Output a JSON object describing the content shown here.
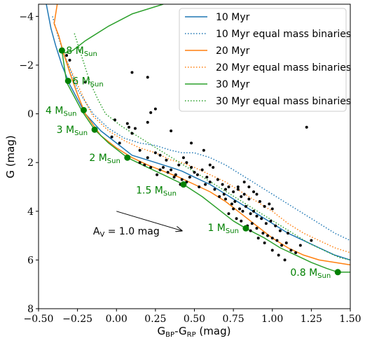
{
  "chart_data": {
    "type": "scatter",
    "xlabel": "G_BP-G_RP (mag)",
    "ylabel": "G (mag)",
    "xlim": [
      -0.5,
      1.5
    ],
    "ylim": [
      8,
      -4.5
    ],
    "y_inverted": true,
    "xticks": [
      "−0.50",
      "−0.25",
      "0.00",
      "0.25",
      "0.50",
      "0.75",
      "1.00",
      "1.25",
      "1.50"
    ],
    "yticks": [
      "−4",
      "−2",
      "0",
      "2",
      "4",
      "6",
      "8"
    ],
    "legend_position": "top-right",
    "colors": {
      "10 Myr": "#1f77b4",
      "20 Myr": "#ff7f0e",
      "30 Myr": "#2ca02c",
      "points": "#000000",
      "markers": "#008000"
    },
    "legend": [
      {
        "label": "10 Myr",
        "color": "#1f77b4",
        "style": "solid"
      },
      {
        "label": "10 Myr equal mass binaries",
        "color": "#1f77b4",
        "style": "dotted"
      },
      {
        "label": "20 Myr",
        "color": "#ff7f0e",
        "style": "solid"
      },
      {
        "label": "20 Myr equal mass binaries",
        "color": "#ff7f0e",
        "style": "dotted"
      },
      {
        "label": "30 Myr",
        "color": "#2ca02c",
        "style": "solid"
      },
      {
        "label": "30 Myr equal mass binaries",
        "color": "#2ca02c",
        "style": "dotted"
      }
    ],
    "series": [
      {
        "name": "10 Myr",
        "style": "solid",
        "color": "#1f77b4",
        "x": [
          -0.45,
          -0.42,
          -0.39,
          -0.35,
          -0.3,
          -0.2,
          -0.1,
          0.0,
          0.1,
          0.2,
          0.3,
          0.35,
          0.42,
          0.5,
          0.6,
          0.7,
          0.8,
          0.9,
          1.0,
          1.1,
          1.2,
          1.3,
          1.4,
          1.5
        ],
        "y": [
          -4.5,
          -3.5,
          -2.8,
          -2.0,
          -1.2,
          0.0,
          0.7,
          1.2,
          1.7,
          1.9,
          2.1,
          2.2,
          2.35,
          2.6,
          2.9,
          3.3,
          3.7,
          4.1,
          4.5,
          4.9,
          5.2,
          5.5,
          5.8,
          6.0
        ]
      },
      {
        "name": "10 Myr equal mass binaries",
        "style": "dotted",
        "color": "#1f77b4",
        "x": [
          -0.41,
          -0.38,
          -0.34,
          -0.29,
          -0.25,
          -0.15,
          -0.05,
          0.05,
          0.15,
          0.25,
          0.35,
          0.42,
          0.5,
          0.6,
          0.7,
          0.8,
          0.9,
          1.0,
          1.1,
          1.2,
          1.3,
          1.4,
          1.5
        ],
        "y": [
          -4.0,
          -3.3,
          -2.5,
          -1.7,
          -1.0,
          0.0,
          0.6,
          1.0,
          1.2,
          1.3,
          1.5,
          1.6,
          1.6,
          1.8,
          2.1,
          2.5,
          2.9,
          3.3,
          3.7,
          4.1,
          4.5,
          4.9,
          5.2
        ]
      },
      {
        "name": "20 Myr",
        "style": "solid",
        "color": "#ff7f0e",
        "x": [
          -0.38,
          -0.4,
          -0.37,
          -0.34,
          -0.3,
          -0.25,
          -0.2,
          -0.1,
          0.0,
          0.1,
          0.2,
          0.3,
          0.4,
          0.5,
          0.6,
          0.7,
          0.8,
          0.9,
          1.0,
          1.1,
          1.2,
          1.3,
          1.4,
          1.5
        ],
        "y": [
          -4.5,
          -3.7,
          -3.2,
          -2.5,
          -1.7,
          -0.8,
          0.0,
          0.9,
          1.4,
          1.8,
          2.1,
          2.35,
          2.6,
          2.9,
          3.2,
          3.6,
          4.1,
          4.6,
          5.1,
          5.5,
          5.8,
          6.0,
          6.1,
          6.2
        ]
      },
      {
        "name": "20 Myr equal mass binaries",
        "style": "dotted",
        "color": "#ff7f0e",
        "x": [
          -0.35,
          -0.3,
          -0.25,
          -0.2,
          -0.15,
          -0.05,
          0.05,
          0.15,
          0.25,
          0.35,
          0.42,
          0.5,
          0.6,
          0.7,
          0.8,
          0.9,
          1.0,
          1.1,
          1.2,
          1.3,
          1.4,
          1.5
        ],
        "y": [
          -2.6,
          -1.9,
          -1.2,
          -0.5,
          0.1,
          0.7,
          1.1,
          1.4,
          1.6,
          1.9,
          2.0,
          2.2,
          2.5,
          2.8,
          3.2,
          3.6,
          4.0,
          4.5,
          4.9,
          5.2,
          5.5,
          5.7
        ]
      },
      {
        "name": "30 Myr",
        "style": "solid",
        "color": "#2ca02c",
        "x": [
          0.3,
          0.1,
          -0.05,
          -0.2,
          -0.28,
          -0.33,
          -0.35,
          -0.32,
          -0.22,
          -0.14,
          -0.05,
          0.07,
          0.2,
          0.3,
          0.43,
          0.55,
          0.65,
          0.75,
          0.83,
          0.95,
          1.05,
          1.15,
          1.25,
          1.35,
          1.42,
          1.5
        ],
        "y": [
          -4.5,
          -4.1,
          -3.6,
          -3.0,
          -2.6,
          -2.5,
          -2.6,
          -1.3,
          -0.1,
          0.65,
          1.2,
          1.8,
          2.2,
          2.5,
          2.9,
          3.4,
          3.9,
          4.4,
          4.7,
          5.1,
          5.5,
          5.8,
          6.1,
          6.35,
          6.5,
          6.5
        ]
      },
      {
        "name": "30 Myr equal mass binaries",
        "style": "dotted",
        "color": "#2ca02c",
        "x": [
          -0.27,
          -0.22,
          -0.17,
          -0.12,
          -0.07,
          0.03,
          0.13,
          0.23,
          0.33,
          0.43,
          0.53,
          0.63,
          0.73,
          0.83,
          0.93,
          1.03,
          1.13,
          1.23,
          1.33,
          1.43,
          1.5
        ],
        "y": [
          -3.3,
          -2.3,
          -1.3,
          -0.6,
          0.0,
          0.5,
          0.9,
          1.3,
          1.7,
          2.1,
          2.5,
          2.9,
          3.3,
          3.7,
          4.1,
          4.5,
          4.9,
          5.3,
          5.6,
          5.9,
          6.0
        ]
      }
    ],
    "points": [
      [
        -0.3,
        -2.2
      ],
      [
        -0.32,
        -2.4
      ],
      [
        -0.2,
        -1.3
      ],
      [
        0.1,
        -1.7
      ],
      [
        0.2,
        -1.5
      ],
      [
        0.25,
        -0.2
      ],
      [
        0.22,
        -0.05
      ],
      [
        -0.01,
        0.25
      ],
      [
        0.07,
        0.4
      ],
      [
        0.2,
        0.35
      ],
      [
        -0.03,
        0.95
      ],
      [
        0.1,
        0.8
      ],
      [
        0.02,
        1.2
      ],
      [
        0.08,
        0.55
      ],
      [
        0.12,
        0.6
      ],
      [
        0.15,
        1.5
      ],
      [
        0.2,
        1.8
      ],
      [
        0.25,
        1.6
      ],
      [
        0.28,
        1.7
      ],
      [
        0.32,
        1.9
      ],
      [
        0.18,
        2.1
      ],
      [
        0.22,
        2.2
      ],
      [
        0.15,
        2.0
      ],
      [
        0.3,
        2.2
      ],
      [
        0.35,
        2.3
      ],
      [
        0.4,
        2.1
      ],
      [
        0.43,
        1.8
      ],
      [
        0.45,
        2.0
      ],
      [
        0.48,
        2.2
      ],
      [
        0.5,
        2.4
      ],
      [
        0.38,
        2.5
      ],
      [
        0.42,
        2.7
      ],
      [
        0.47,
        2.6
      ],
      [
        0.52,
        2.5
      ],
      [
        0.55,
        2.3
      ],
      [
        0.35,
        0.7
      ],
      [
        0.48,
        1.2
      ],
      [
        0.56,
        1.5
      ],
      [
        0.6,
        2.1
      ],
      [
        0.62,
        2.2
      ],
      [
        0.58,
        2.6
      ],
      [
        0.6,
        2.8
      ],
      [
        0.65,
        2.7
      ],
      [
        0.68,
        2.9
      ],
      [
        0.7,
        3.1
      ],
      [
        0.72,
        3.0
      ],
      [
        0.75,
        3.2
      ],
      [
        0.78,
        3.1
      ],
      [
        0.8,
        3.4
      ],
      [
        0.82,
        3.3
      ],
      [
        0.85,
        3.5
      ],
      [
        0.9,
        3.3
      ],
      [
        0.92,
        3.6
      ],
      [
        0.95,
        3.8
      ],
      [
        0.98,
        3.7
      ],
      [
        1.0,
        3.9
      ],
      [
        0.7,
        3.5
      ],
      [
        0.74,
        3.7
      ],
      [
        0.76,
        3.6
      ],
      [
        0.79,
        3.9
      ],
      [
        0.81,
        4.0
      ],
      [
        0.83,
        3.8
      ],
      [
        0.86,
        4.1
      ],
      [
        0.88,
        4.0
      ],
      [
        0.9,
        4.2
      ],
      [
        0.93,
        4.3
      ],
      [
        0.96,
        4.5
      ],
      [
        0.99,
        4.4
      ],
      [
        1.02,
        4.6
      ],
      [
        1.05,
        4.8
      ],
      [
        0.72,
        4.1
      ],
      [
        0.77,
        4.3
      ],
      [
        0.8,
        4.4
      ],
      [
        0.84,
        4.6
      ],
      [
        0.87,
        4.5
      ],
      [
        0.9,
        4.7
      ],
      [
        0.94,
        4.9
      ],
      [
        0.97,
        5.0
      ],
      [
        1.0,
        5.1
      ],
      [
        1.03,
        5.2
      ],
      [
        1.06,
        5.4
      ],
      [
        1.09,
        5.3
      ],
      [
        1.12,
        5.6
      ],
      [
        1.15,
        5.7
      ],
      [
        1.1,
        4.9
      ],
      [
        1.18,
        5.4
      ],
      [
        1.25,
        5.2
      ],
      [
        1.22,
        0.55
      ],
      [
        0.78,
        3.0
      ],
      [
        0.82,
        2.8
      ],
      [
        0.85,
        3.0
      ],
      [
        0.66,
        3.4
      ],
      [
        0.69,
        3.3
      ],
      [
        0.63,
        3.1
      ],
      [
        0.57,
        2.9
      ],
      [
        0.53,
        3.0
      ],
      [
        0.45,
        2.8
      ],
      [
        0.41,
        2.9
      ],
      [
        0.37,
        2.6
      ],
      [
        0.33,
        2.4
      ],
      [
        0.28,
        2.3
      ],
      [
        0.26,
        2.5
      ],
      [
        0.86,
        4.8
      ],
      [
        0.91,
        5.1
      ],
      [
        0.95,
        5.3
      ],
      [
        1.0,
        5.6
      ],
      [
        1.04,
        5.8
      ],
      [
        1.08,
        6.0
      ],
      [
        0.75,
        3.9
      ],
      [
        0.88,
        3.2
      ]
    ],
    "annotations": [
      {
        "text": "8 M",
        "sub": "Sun",
        "mass_x": -0.35,
        "mass_y": -2.6
      },
      {
        "text": "6 M",
        "sub": "Sun",
        "mass_x": -0.31,
        "mass_y": -1.35
      },
      {
        "text": "4 M",
        "sub": "Sun",
        "mass_x": -0.21,
        "mass_y": -0.15
      },
      {
        "text": "3 M",
        "sub": "Sun",
        "mass_x": -0.14,
        "mass_y": 0.65
      },
      {
        "text": "2 M",
        "sub": "Sun",
        "mass_x": 0.07,
        "mass_y": 1.8
      },
      {
        "text": "1.5 M",
        "sub": "Sun",
        "mass_x": 0.43,
        "mass_y": 2.9
      },
      {
        "text": "1 M",
        "sub": "Sun",
        "mass_x": 0.83,
        "mass_y": 4.7
      },
      {
        "text": "0.8 M",
        "sub": "Sun",
        "mass_x": 1.42,
        "mass_y": 6.5
      }
    ],
    "extinction_vector": {
      "label": "A",
      "label_sub": "V",
      "label_tail": " = 1.0 mag",
      "x0": 0.0,
      "y0": 4.0,
      "x1": 0.42,
      "y1": 4.8
    }
  }
}
